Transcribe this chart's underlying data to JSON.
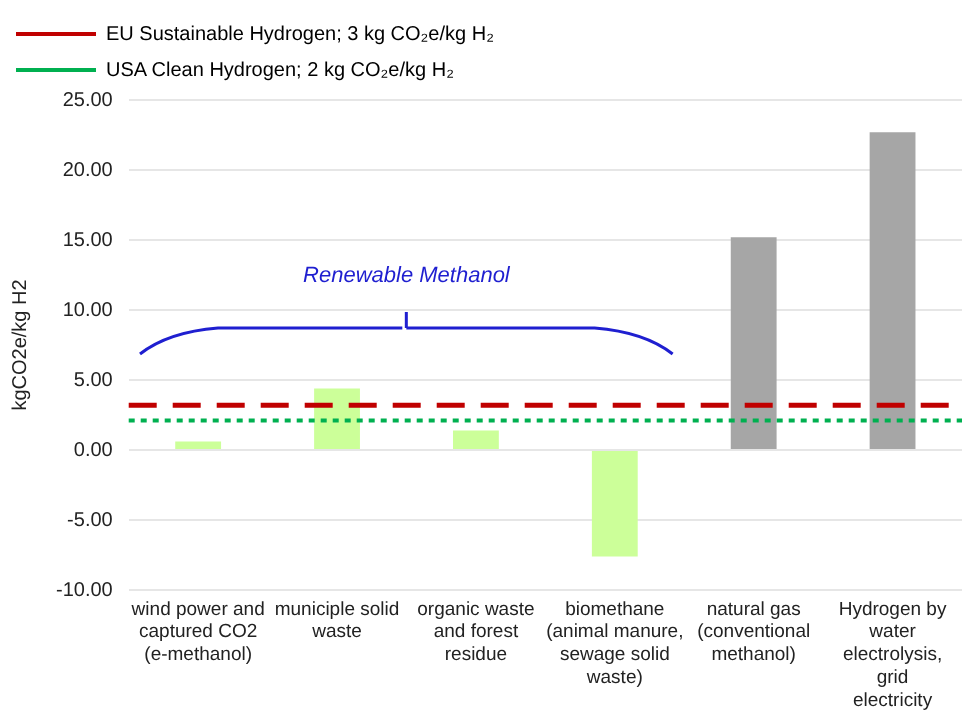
{
  "chart_data": {
    "type": "bar",
    "ylabel": "kgCO2e/kg H2",
    "categories": [
      "wind power and captured CO2 (e-methanol)",
      "municiple solid waste",
      "organic waste and forest residue",
      "biomethane (animal manure, sewage solid waste)",
      "natural gas (conventional methanol)",
      "Hydrogen by water electrolysis, grid electricity"
    ],
    "values": [
      0.6,
      4.4,
      1.4,
      -7.6,
      15.2,
      22.7
    ],
    "colors": [
      "#ccff99",
      "#ccff99",
      "#ccff99",
      "#ccff99",
      "#a6a6a6",
      "#a6a6a6"
    ],
    "ylim": [
      -10,
      25
    ],
    "yticks": [
      {
        "value": -10,
        "label": "-10.00"
      },
      {
        "value": -5,
        "label": "-5.00"
      },
      {
        "value": 0,
        "label": "0.00"
      },
      {
        "value": 5,
        "label": "5.00"
      },
      {
        "value": 10,
        "label": "10.00"
      },
      {
        "value": 15,
        "label": "15.00"
      },
      {
        "value": 20,
        "label": "20.00"
      },
      {
        "value": 25,
        "label": "25.00"
      }
    ],
    "grid": "y",
    "legend": "top left",
    "ref_lines": [
      {
        "axis": "y",
        "value": 3.2,
        "label": "EU Sustainable Hydrogen; 3 kg CO₂e/kg H₂",
        "color": "#c00000",
        "line_style": "dashed"
      },
      {
        "axis": "y",
        "value": 2.1,
        "label": "USA Clean Hydrogen; 2 kg CO₂e/kg H₂",
        "color": "#00b050",
        "line_style": "dotted"
      }
    ],
    "annotations": [
      "Renewable Methanol"
    ]
  }
}
